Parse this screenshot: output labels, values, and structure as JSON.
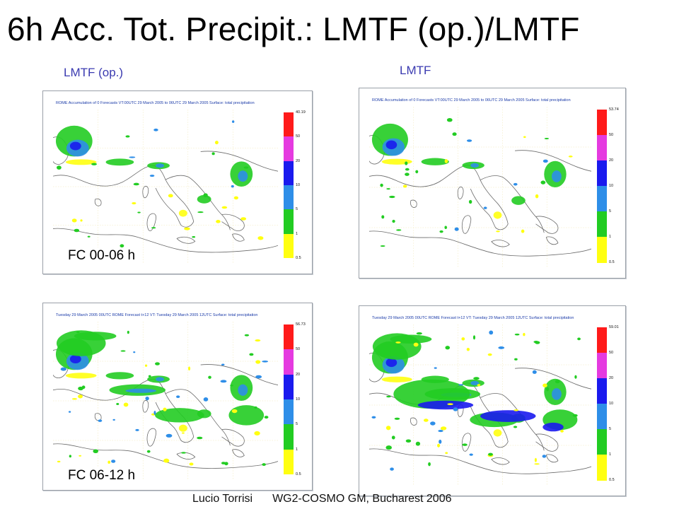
{
  "title": "6h Acc. Tot. Precipit.: LMTF (op.)/LMTF",
  "columns": {
    "left": "LMTF (op.)",
    "right": "LMTF"
  },
  "panels": [
    {
      "header": "ROME Accumulation of 0 Forecasts VT:00UTC 29 March 2005 to 06UTC 29 March 2005 Surface: total precipitation",
      "max_value": "40.19",
      "fc_label": "FC 00-06 h"
    },
    {
      "header": "ROME Accumulation of 0 Forecasts VT:00UTC 29 March 2005 to 06UTC 29 March 2005 Surface: total precipitation",
      "max_value": "53.74",
      "fc_label": ""
    },
    {
      "header": "Tuesday 29 March 2005 00UTC ROME Forecast t+12 VT: Tuesday 29 March 2005 12UTC Surface: total precipitation",
      "max_value": "56.73",
      "fc_label": "FC 06-12 h"
    },
    {
      "header": "Tuesday 29 March 2005 00UTC ROME Forecast t+12 VT: Tuesday 29 March 2005 12UTC Surface: total precipitation",
      "max_value": "59.01",
      "fc_label": ""
    }
  ],
  "colorbar": {
    "ticks": [
      "50",
      "20",
      "10",
      "5",
      "1",
      "0.5"
    ],
    "colors": [
      "#ff1a1a",
      "#e53ae0",
      "#1a1aee",
      "#2e8ee8",
      "#22cc22",
      "#ffff10"
    ]
  },
  "footer": {
    "author": "Lucio Torrisi",
    "event": "WG2-COSMO GM, Bucharest 2006"
  }
}
